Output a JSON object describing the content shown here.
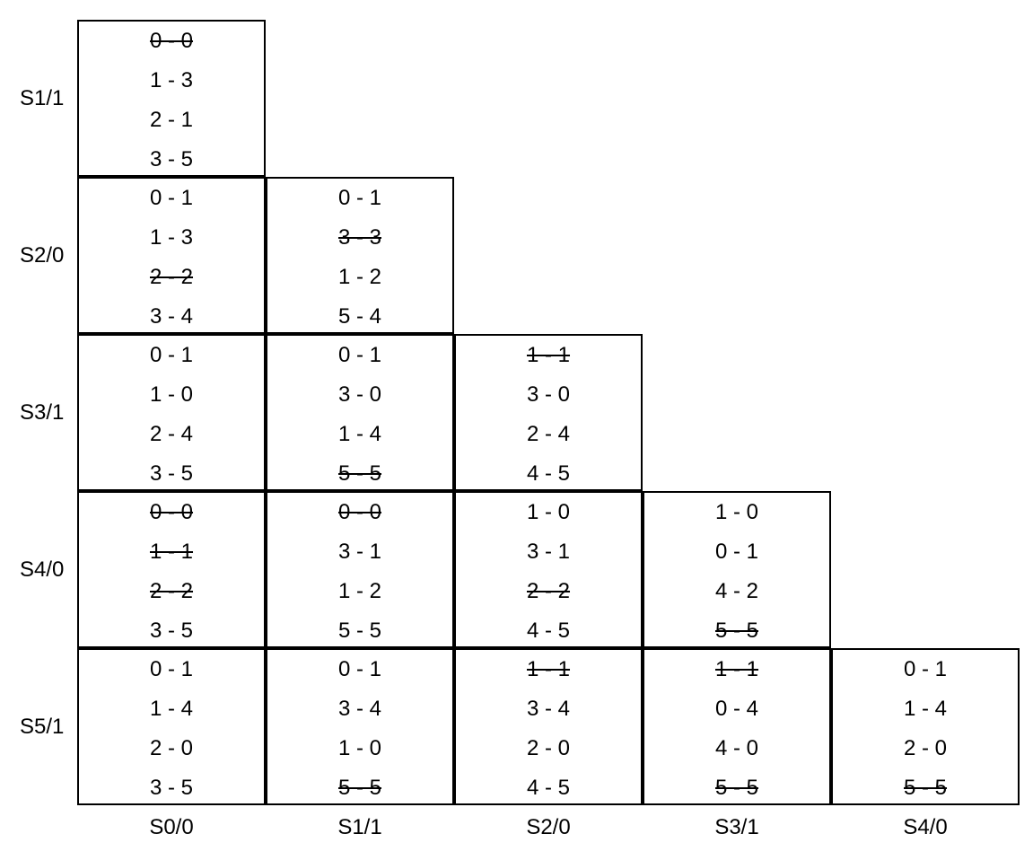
{
  "row_headers": [
    "S1/1",
    "S2/0",
    "S3/1",
    "S4/0",
    "S5/1"
  ],
  "column_headers": [
    "S0/0",
    "S1/1",
    "S2/0",
    "S3/1",
    "S4/0"
  ],
  "rows": [
    {
      "label": "S1/1",
      "cells": [
        [
          {
            "text": "0 - 0",
            "struck": true
          },
          {
            "text": "1 - 3",
            "struck": false
          },
          {
            "text": "2 - 1",
            "struck": false
          },
          {
            "text": "3 - 5",
            "struck": false
          }
        ]
      ]
    },
    {
      "label": "S2/0",
      "cells": [
        [
          {
            "text": "0 - 1",
            "struck": false
          },
          {
            "text": "1 - 3",
            "struck": false
          },
          {
            "text": "2 - 2",
            "struck": true
          },
          {
            "text": "3 - 4",
            "struck": false
          }
        ],
        [
          {
            "text": "0 - 1",
            "struck": false
          },
          {
            "text": "3 - 3",
            "struck": true
          },
          {
            "text": "1 - 2",
            "struck": false
          },
          {
            "text": "5 - 4",
            "struck": false
          }
        ]
      ]
    },
    {
      "label": "S3/1",
      "cells": [
        [
          {
            "text": "0 - 1",
            "struck": false
          },
          {
            "text": "1 - 0",
            "struck": false
          },
          {
            "text": "2 - 4",
            "struck": false
          },
          {
            "text": "3 - 5",
            "struck": false
          }
        ],
        [
          {
            "text": "0 - 1",
            "struck": false
          },
          {
            "text": "3 - 0",
            "struck": false
          },
          {
            "text": "1 - 4",
            "struck": false
          },
          {
            "text": "5 - 5",
            "struck": true
          }
        ],
        [
          {
            "text": "1 - 1",
            "struck": true
          },
          {
            "text": "3 - 0",
            "struck": false
          },
          {
            "text": "2 - 4",
            "struck": false
          },
          {
            "text": "4 - 5",
            "struck": false
          }
        ]
      ]
    },
    {
      "label": "S4/0",
      "cells": [
        [
          {
            "text": "0 - 0",
            "struck": true
          },
          {
            "text": "1 - 1",
            "struck": true
          },
          {
            "text": "2 - 2",
            "struck": true
          },
          {
            "text": "3 - 5",
            "struck": false
          }
        ],
        [
          {
            "text": "0 - 0",
            "struck": true
          },
          {
            "text": "3 - 1",
            "struck": false
          },
          {
            "text": "1 - 2",
            "struck": false
          },
          {
            "text": "5 - 5",
            "struck": false
          }
        ],
        [
          {
            "text": "1 - 0",
            "struck": false
          },
          {
            "text": "3 - 1",
            "struck": false
          },
          {
            "text": "2 - 2",
            "struck": true
          },
          {
            "text": "4 - 5",
            "struck": false
          }
        ],
        [
          {
            "text": "1 - 0",
            "struck": false
          },
          {
            "text": "0 - 1",
            "struck": false
          },
          {
            "text": "4 - 2",
            "struck": false
          },
          {
            "text": "5 - 5",
            "struck": true
          }
        ]
      ]
    },
    {
      "label": "S5/1",
      "cells": [
        [
          {
            "text": "0 - 1",
            "struck": false
          },
          {
            "text": "1 - 4",
            "struck": false
          },
          {
            "text": "2 - 0",
            "struck": false
          },
          {
            "text": "3 - 5",
            "struck": false
          }
        ],
        [
          {
            "text": "0 - 1",
            "struck": false
          },
          {
            "text": "3 - 4",
            "struck": false
          },
          {
            "text": "1 - 0",
            "struck": false
          },
          {
            "text": "5 - 5",
            "struck": true
          }
        ],
        [
          {
            "text": "1 - 1",
            "struck": true
          },
          {
            "text": "3 - 4",
            "struck": false
          },
          {
            "text": "2 - 0",
            "struck": false
          },
          {
            "text": "4 - 5",
            "struck": false
          }
        ],
        [
          {
            "text": "1 - 1",
            "struck": true
          },
          {
            "text": "0 - 4",
            "struck": false
          },
          {
            "text": "4 - 0",
            "struck": false
          },
          {
            "text": "5 - 5",
            "struck": true
          }
        ],
        [
          {
            "text": "0 - 1",
            "struck": false
          },
          {
            "text": "1 - 4",
            "struck": false
          },
          {
            "text": "2 - 0",
            "struck": false
          },
          {
            "text": "5 - 5",
            "struck": true
          }
        ]
      ]
    }
  ]
}
